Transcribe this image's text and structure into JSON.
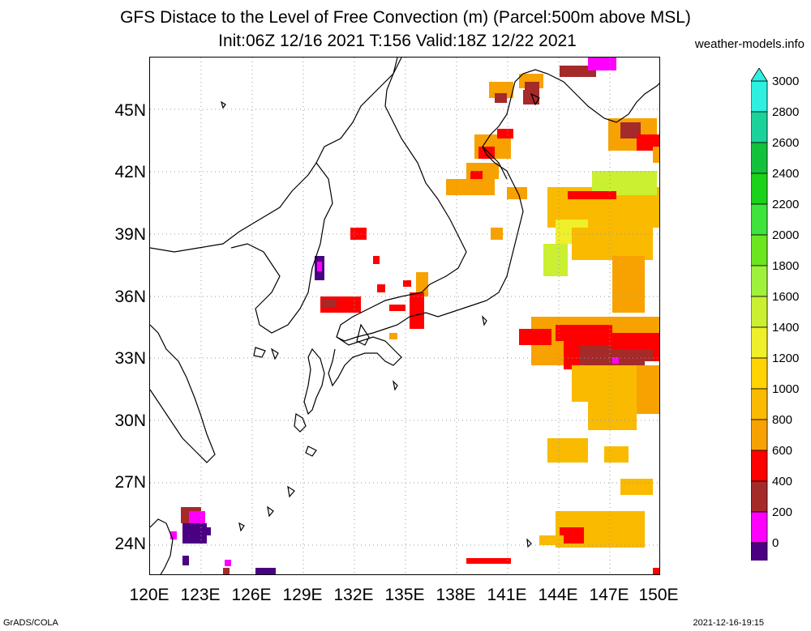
{
  "header": {
    "title_line1": "GFS Distace to the Level of Free Convection (m) (Parcel:500m above MSL)",
    "title_line2": "Init:06Z 12/16 2021 T:156 Valid:18Z 12/22 2021",
    "credit": "weather-models.info"
  },
  "map": {
    "lon_labels": [
      "120E",
      "123E",
      "126E",
      "129E",
      "132E",
      "135E",
      "138E",
      "141E",
      "144E",
      "147E",
      "150E"
    ],
    "lat_labels": [
      "45N",
      "42N",
      "39N",
      "36N",
      "33N",
      "30N",
      "27N",
      "24N"
    ],
    "lon_range": [
      120,
      150
    ],
    "lat_range": [
      22.5,
      47.5
    ],
    "gridlines": "dotted"
  },
  "colorbar": {
    "labels": [
      "3000",
      "2800",
      "2600",
      "2400",
      "2200",
      "2000",
      "1800",
      "1600",
      "1400",
      "1200",
      "1000",
      "800",
      "600",
      "400",
      "200",
      "0"
    ],
    "colors": [
      "#2df0e0",
      "#1ad39a",
      "#12c23a",
      "#19d219",
      "#3ee33c",
      "#6be61f",
      "#9ff23c",
      "#caf031",
      "#efef2a",
      "#ffd400",
      "#f9ba00",
      "#f7a200",
      "#ff0000",
      "#a52a2a",
      "#ff00ff",
      "#4b0082"
    ]
  },
  "footer": {
    "left": "GrADS/COLA",
    "right": "2021-12-16-19:15"
  }
}
